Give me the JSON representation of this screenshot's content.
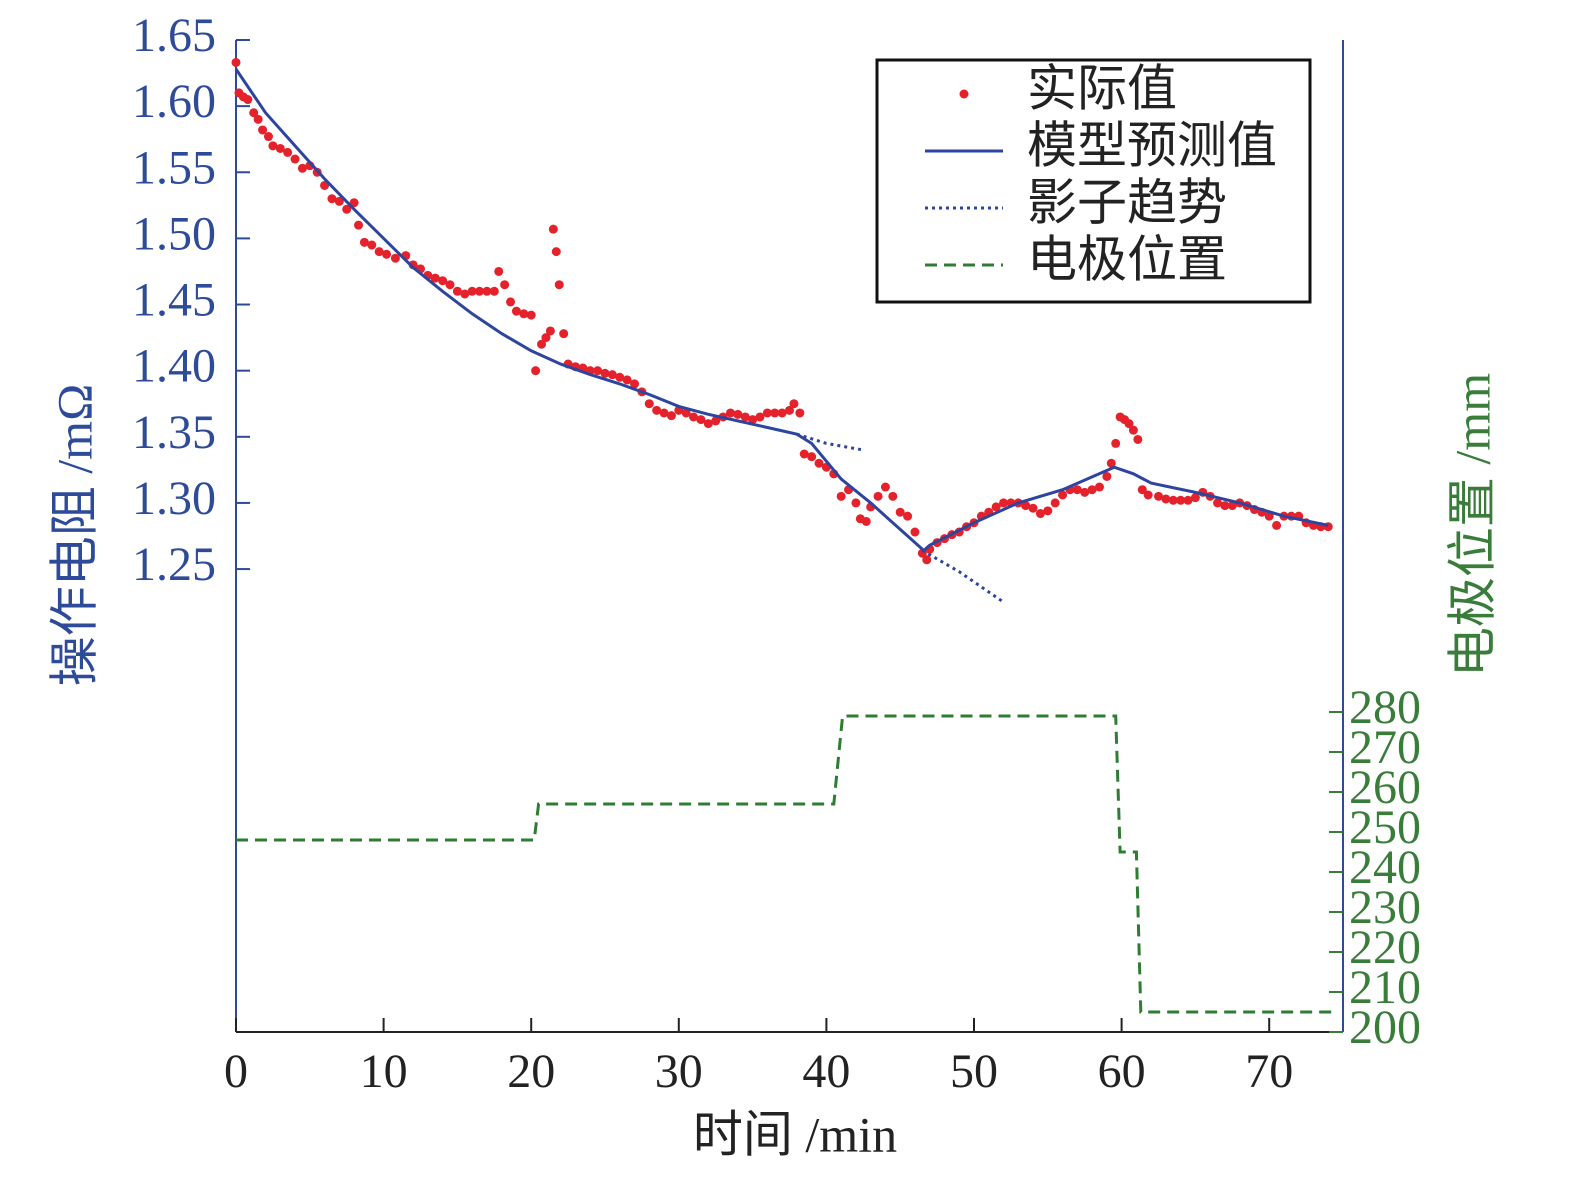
{
  "chart_data": {
    "type": "line",
    "xlabel": "时间 /min",
    "ylabel": "操作电阻 /mΩ",
    "y2label": "电极位置 /mm",
    "xlim": [
      0,
      75
    ],
    "xticks": [
      0,
      10,
      20,
      30,
      40,
      50,
      60,
      70
    ],
    "ylim": [
      0.9,
      1.65
    ],
    "yticks": [
      {
        "value": 1.25,
        "label": "1.25"
      },
      {
        "value": 1.3,
        "label": "1.30"
      },
      {
        "value": 1.35,
        "label": "1.35"
      },
      {
        "value": 1.4,
        "label": "1.40"
      },
      {
        "value": 1.45,
        "label": "1.45"
      },
      {
        "value": 1.5,
        "label": "1.50"
      },
      {
        "value": 1.55,
        "label": "1.55"
      },
      {
        "value": 1.6,
        "label": "1.60"
      },
      {
        "value": 1.65,
        "label": "1.65"
      }
    ],
    "y2lim": [
      200,
      448
    ],
    "y2ticks": [
      200,
      210,
      220,
      230,
      240,
      250,
      260,
      270,
      280
    ],
    "legend": "upper right",
    "series": [
      {
        "name": "实际值",
        "color": "#e5222b",
        "style": "markers",
        "x": [
          0,
          0.2,
          0.5,
          0.8,
          1.2,
          1.5,
          1.8,
          2.2,
          2.5,
          3,
          3.5,
          4,
          4.5,
          5,
          5.5,
          6,
          6.5,
          7,
          7.5,
          8,
          8.3,
          8.7,
          9.2,
          9.7,
          10.2,
          10.8,
          11.5,
          12,
          12.5,
          13,
          13.5,
          14,
          14.5,
          15,
          15.5,
          16,
          16.5,
          17,
          17.5,
          17.8,
          18.2,
          18.6,
          19,
          19.5,
          20,
          20.3,
          20.7,
          21,
          21.3,
          21.5,
          21.7,
          21.9,
          22.2,
          22.5,
          23,
          23.5,
          24,
          24.5,
          25,
          25.5,
          26,
          26.5,
          27,
          27.5,
          28,
          28.5,
          29,
          29.5,
          30,
          30.5,
          31,
          31.5,
          32,
          32.5,
          33,
          33.5,
          34,
          34.5,
          35,
          35.5,
          36,
          36.5,
          37,
          37.5,
          37.8,
          38.2,
          38.5,
          39,
          39.5,
          40,
          40.5,
          41,
          41.5,
          42,
          42.3,
          42.7,
          43,
          43.5,
          44,
          44.5,
          45,
          45.5,
          46,
          46.5,
          46.8,
          47,
          47.5,
          48,
          48.5,
          49,
          49.5,
          50,
          50.5,
          51,
          51.5,
          52,
          52.5,
          53,
          53.5,
          54,
          54.5,
          55,
          55.5,
          56,
          56.5,
          57,
          57.5,
          58,
          58.5,
          59,
          59.3,
          59.6,
          59.9,
          60.2,
          60.5,
          60.8,
          61.1,
          61.4,
          61.8,
          62.5,
          63,
          63.5,
          64,
          64.5,
          65,
          65.5,
          66,
          66.5,
          67,
          67.5,
          68,
          68.5,
          69,
          69.5,
          70,
          70.5,
          71,
          71.5,
          72,
          72.5,
          73,
          73.5,
          74
        ],
        "values": [
          1.633,
          1.61,
          1.607,
          1.605,
          1.595,
          1.59,
          1.582,
          1.577,
          1.57,
          1.568,
          1.565,
          1.56,
          1.553,
          1.555,
          1.55,
          1.54,
          1.53,
          1.528,
          1.522,
          1.527,
          1.51,
          1.497,
          1.495,
          1.49,
          1.488,
          1.485,
          1.487,
          1.48,
          1.477,
          1.472,
          1.47,
          1.468,
          1.465,
          1.46,
          1.458,
          1.46,
          1.46,
          1.46,
          1.46,
          1.475,
          1.465,
          1.452,
          1.445,
          1.443,
          1.442,
          1.4,
          1.42,
          1.425,
          1.43,
          1.507,
          1.49,
          1.465,
          1.428,
          1.405,
          1.403,
          1.402,
          1.4,
          1.4,
          1.398,
          1.397,
          1.395,
          1.393,
          1.39,
          1.384,
          1.375,
          1.37,
          1.368,
          1.366,
          1.37,
          1.368,
          1.365,
          1.363,
          1.36,
          1.362,
          1.365,
          1.368,
          1.367,
          1.365,
          1.363,
          1.365,
          1.368,
          1.368,
          1.368,
          1.37,
          1.375,
          1.368,
          1.337,
          1.335,
          1.33,
          1.327,
          1.322,
          1.305,
          1.31,
          1.3,
          1.288,
          1.286,
          1.297,
          1.305,
          1.312,
          1.305,
          1.293,
          1.29,
          1.278,
          1.262,
          1.257,
          1.265,
          1.27,
          1.273,
          1.276,
          1.278,
          1.282,
          1.285,
          1.29,
          1.293,
          1.297,
          1.3,
          1.3,
          1.3,
          1.298,
          1.296,
          1.292,
          1.294,
          1.3,
          1.306,
          1.31,
          1.31,
          1.308,
          1.31,
          1.312,
          1.32,
          1.33,
          1.345,
          1.365,
          1.363,
          1.36,
          1.355,
          1.348,
          1.31,
          1.306,
          1.305,
          1.303,
          1.302,
          1.302,
          1.302,
          1.304,
          1.308,
          1.305,
          1.3,
          1.298,
          1.298,
          1.3,
          1.298,
          1.295,
          1.293,
          1.29,
          1.283,
          1.29,
          1.29,
          1.29,
          1.285,
          1.283,
          1.282,
          1.282
        ]
      },
      {
        "name": "模型预测值",
        "color": "#2e45a0",
        "style": "solid",
        "x": [
          0,
          2,
          4,
          6,
          8,
          10,
          12,
          14,
          16,
          18,
          20,
          22,
          24,
          26,
          28,
          30,
          32,
          34,
          36,
          38,
          39,
          41,
          43,
          45,
          46.6,
          47,
          50,
          53,
          56,
          59.5,
          60.8,
          62,
          65,
          68,
          71,
          74
        ],
        "values": [
          1.628,
          1.595,
          1.57,
          1.545,
          1.522,
          1.5,
          1.478,
          1.46,
          1.443,
          1.428,
          1.415,
          1.405,
          1.397,
          1.39,
          1.382,
          1.373,
          1.367,
          1.362,
          1.357,
          1.352,
          1.345,
          1.318,
          1.3,
          1.28,
          1.264,
          1.268,
          1.285,
          1.3,
          1.31,
          1.327,
          1.322,
          1.315,
          1.308,
          1.3,
          1.29,
          1.283
        ]
      },
      {
        "name": "影子趋势",
        "color": "#2e45a0",
        "style": "dotted",
        "x": [
          38,
          40,
          42.5,
          44,
          46.5,
          49,
          52
        ],
        "values": [
          1.352,
          1.345,
          1.34,
          null,
          1.264,
          1.248,
          1.225
        ]
      },
      {
        "name": "电极位置",
        "color": "#2e7d32",
        "style": "dashed",
        "axis": "y2",
        "x": [
          0,
          20.2,
          20.5,
          40.5,
          41.1,
          59.6,
          59.9,
          61.0,
          61.3,
          74.5
        ],
        "values": [
          248,
          248,
          257,
          257,
          279,
          279,
          245,
          245,
          205,
          205
        ]
      }
    ]
  }
}
